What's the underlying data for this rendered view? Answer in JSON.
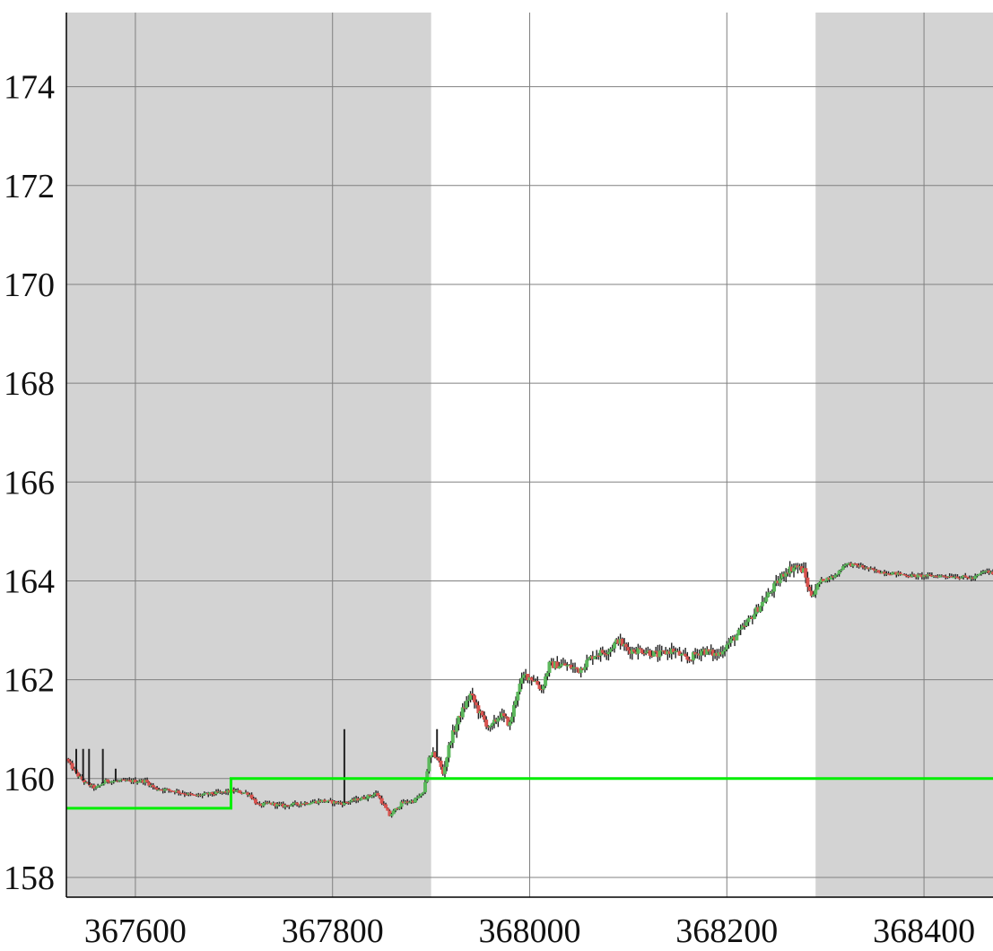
{
  "chart_data": {
    "type": "candlestick",
    "title": "",
    "xlabel": "",
    "ylabel": "",
    "xlim": [
      367530,
      368470
    ],
    "ylim": [
      157.6,
      175.5
    ],
    "grid": true,
    "x_ticks": [
      367600,
      367800,
      368000,
      368200,
      368400
    ],
    "x_tick_labels": [
      "367600",
      "367800",
      "368000",
      "368200",
      "368400"
    ],
    "y_ticks": [
      158,
      160,
      162,
      164,
      166,
      168,
      170,
      172,
      174
    ],
    "y_tick_labels": [
      "158",
      "160",
      "162",
      "164",
      "166",
      "168",
      "170",
      "172",
      "174"
    ],
    "shaded_x_ranges": [
      [
        367530,
        367900
      ],
      [
        368290,
        368470
      ]
    ],
    "colors": {
      "up_body": "#5cb85c",
      "down_body": "#d9534f",
      "wick": "#222222",
      "shade": "#d3d3d3",
      "grid": "#808080",
      "level_line": "#00ee00"
    },
    "level_line": [
      [
        367530,
        159.4
      ],
      [
        367697,
        159.4
      ],
      [
        367697,
        160.0
      ],
      [
        368470,
        160.0
      ]
    ],
    "price_path": [
      [
        367530,
        160.4
      ],
      [
        367540,
        160.1
      ],
      [
        367550,
        159.9
      ],
      [
        367560,
        159.8
      ],
      [
        367570,
        159.95
      ],
      [
        367590,
        159.95
      ],
      [
        367610,
        159.95
      ],
      [
        367620,
        159.8
      ],
      [
        367640,
        159.75
      ],
      [
        367660,
        159.65
      ],
      [
        367680,
        159.7
      ],
      [
        367700,
        159.75
      ],
      [
        367715,
        159.7
      ],
      [
        367725,
        159.45
      ],
      [
        367735,
        159.5
      ],
      [
        367750,
        159.45
      ],
      [
        367770,
        159.5
      ],
      [
        367790,
        159.55
      ],
      [
        367810,
        159.5
      ],
      [
        367830,
        159.6
      ],
      [
        367845,
        159.7
      ],
      [
        367858,
        159.25
      ],
      [
        367870,
        159.5
      ],
      [
        367882,
        159.55
      ],
      [
        367892,
        159.7
      ],
      [
        367898,
        160.4
      ],
      [
        367905,
        160.5
      ],
      [
        367912,
        160.1
      ],
      [
        367920,
        160.8
      ],
      [
        367930,
        161.3
      ],
      [
        367940,
        161.7
      ],
      [
        367950,
        161.3
      ],
      [
        367960,
        161.0
      ],
      [
        367970,
        161.3
      ],
      [
        367980,
        161.1
      ],
      [
        367988,
        161.8
      ],
      [
        367995,
        162.1
      ],
      [
        368005,
        162.0
      ],
      [
        368012,
        161.8
      ],
      [
        368020,
        162.3
      ],
      [
        368035,
        162.3
      ],
      [
        368050,
        162.2
      ],
      [
        368065,
        162.5
      ],
      [
        368080,
        162.6
      ],
      [
        368090,
        162.8
      ],
      [
        368100,
        162.6
      ],
      [
        368115,
        162.6
      ],
      [
        368130,
        162.5
      ],
      [
        368145,
        162.6
      ],
      [
        368160,
        162.4
      ],
      [
        368175,
        162.6
      ],
      [
        368190,
        162.5
      ],
      [
        368200,
        162.7
      ],
      [
        368215,
        163.0
      ],
      [
        368230,
        163.4
      ],
      [
        368245,
        163.8
      ],
      [
        368260,
        164.2
      ],
      [
        368270,
        164.3
      ],
      [
        368278,
        164.2
      ],
      [
        368285,
        163.7
      ],
      [
        368295,
        164.0
      ],
      [
        368310,
        164.1
      ],
      [
        368320,
        164.35
      ],
      [
        368335,
        164.3
      ],
      [
        368350,
        164.2
      ],
      [
        368370,
        164.15
      ],
      [
        368390,
        164.1
      ],
      [
        368410,
        164.1
      ],
      [
        368430,
        164.1
      ],
      [
        368450,
        164.05
      ],
      [
        368462,
        164.2
      ],
      [
        368470,
        164.15
      ]
    ],
    "spikes": [
      {
        "x": 367540,
        "high": 160.6
      },
      {
        "x": 367547,
        "high": 160.6
      },
      {
        "x": 367553,
        "high": 160.6
      },
      {
        "x": 367567,
        "high": 160.6
      },
      {
        "x": 367580,
        "high": 160.2
      },
      {
        "x": 367812,
        "high": 161.0
      },
      {
        "x": 367906,
        "high": 161.0
      }
    ]
  }
}
